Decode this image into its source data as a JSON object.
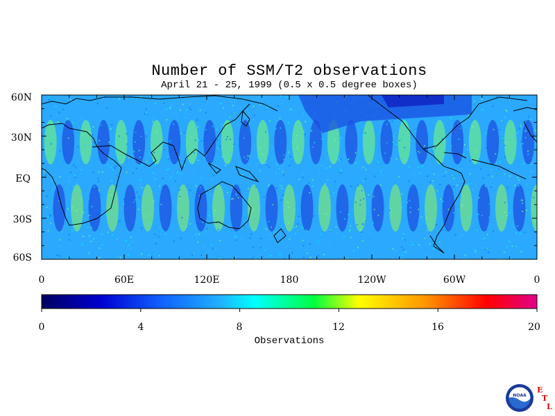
{
  "title": "Number of SSM/T2 observations",
  "subtitle": "April 21 - 25, 1999 (0.5 x 0.5 degree boxes)",
  "map": {
    "lat_labels": [
      "60N",
      "30N",
      "EQ",
      "30S",
      "60S"
    ],
    "lon_labels": [
      "0",
      "60E",
      "120E",
      "180",
      "120W",
      "60W",
      "0"
    ]
  },
  "colorbar": {
    "label": "Observations",
    "min": 0,
    "max": 20,
    "tick_labels": [
      "0",
      "4",
      "8",
      "12",
      "16",
      "20"
    ],
    "colors": [
      "#000060",
      "#0000d0",
      "#1060ff",
      "#20b0ff",
      "#00ffff",
      "#00ff40",
      "#ffff00",
      "#ff9000",
      "#ff0000",
      "#e0008a"
    ]
  },
  "logo": {
    "name": "noaa-logo",
    "text": "NOAA",
    "letters": [
      "E",
      "T",
      "L"
    ]
  }
}
